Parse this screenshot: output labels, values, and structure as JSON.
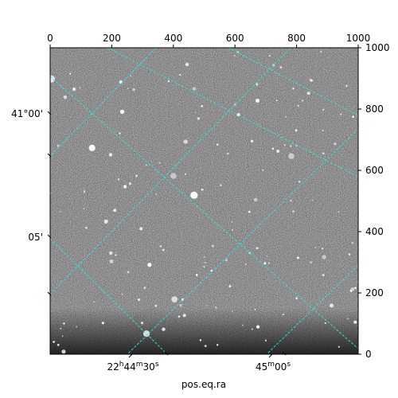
{
  "chart_data": {
    "type": "image",
    "title": "",
    "xlabel": "pos.eq.ra",
    "ylabel": "",
    "pixel_axes": {
      "top_ticks": [
        "0",
        "200",
        "400",
        "600",
        "800",
        "1000"
      ],
      "right_ticks": [
        "0",
        "200",
        "400",
        "600",
        "800",
        "1000"
      ],
      "x_range": [
        0,
        1000
      ],
      "y_range": [
        0,
        1000
      ]
    },
    "world_axes": {
      "ra_tick_labels": [
        "22h44m30s",
        "45m00s"
      ],
      "dec_tick_labels": [
        "41°00'",
        "05'"
      ]
    },
    "grid": true,
    "grid_color": "#2ee8e8",
    "image_colormap": "grayscale",
    "background_color": "#ffffff"
  }
}
